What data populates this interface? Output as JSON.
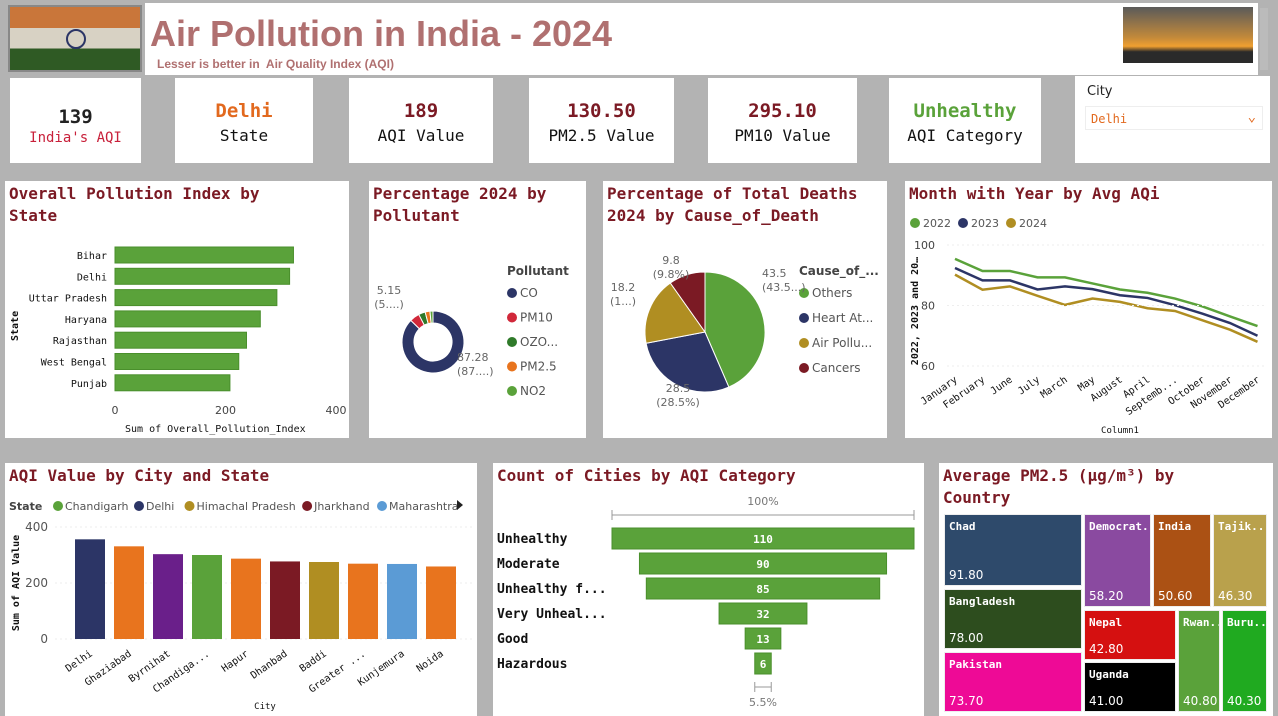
{
  "header": {
    "title": "Air Pollution in India - 2024",
    "subtitle": "Lesser is better in  Air Quality Index (AQI)"
  },
  "kpis": [
    {
      "value": "139",
      "label": "India's AQI",
      "value_color": "#222222",
      "label_color": "#c8203a"
    },
    {
      "value": "Delhi",
      "label": "State",
      "value_color": "#e2691e",
      "label_color": "#111111"
    },
    {
      "value": "189",
      "label": "AQI Value",
      "value_color": "#7b1a24",
      "label_color": "#111111"
    },
    {
      "value": "130.50",
      "label": "PM2.5 Value",
      "value_color": "#7b1a24",
      "label_color": "#111111"
    },
    {
      "value": "295.10",
      "label": "PM10 Value",
      "value_color": "#7b1a24",
      "label_color": "#111111"
    },
    {
      "value": "Unhealthy",
      "label": "AQI Category",
      "value_color": "#5aa23a",
      "label_color": "#111111"
    }
  ],
  "slicer": {
    "label": "City",
    "selected": "Delhi"
  },
  "chart_data": [
    {
      "id": "state_bar",
      "type": "bar",
      "orientation": "horizontal",
      "title": "Overall Pollution Index by State",
      "xlabel": "Sum of Overall_Pollution_Index",
      "ylabel": "State",
      "categories": [
        "Bihar",
        "Delhi",
        "Uttar Pradesh",
        "Haryana",
        "Rajasthan",
        "West Bengal",
        "Punjab"
      ],
      "values": [
        323,
        316,
        293,
        263,
        238,
        224,
        208
      ],
      "xlim": [
        0,
        400
      ],
      "ticks": [
        "0",
        "200",
        "400"
      ],
      "color": "#5aa23a"
    },
    {
      "id": "pollutant_donut",
      "type": "pie",
      "variant": "donut",
      "title": "Percentage 2024 by Pollutant",
      "legend_title": "Pollutant",
      "categories": [
        "CO",
        "PM10",
        "OZO...",
        "PM2.5",
        "NO2"
      ],
      "values": [
        87.28,
        5.15,
        3.5,
        2.5,
        1.57
      ],
      "colors": [
        "#2c3566",
        "#d1283a",
        "#2f7a2a",
        "#e8741e",
        "#5aa23a"
      ],
      "labels": [
        {
          "value": "87.28",
          "pct": "(87....)"
        },
        {
          "value": "5.15",
          "pct": "(5....)"
        }
      ]
    },
    {
      "id": "deaths_pie",
      "type": "pie",
      "title": "Percentage of Total Deaths 2024 by Cause_of_Death",
      "legend_title": "Cause_of_...",
      "categories": [
        "Others",
        "Heart At...",
        "Air Pollu...",
        "Cancers"
      ],
      "values": [
        43.5,
        28.5,
        18.2,
        9.8
      ],
      "colors": [
        "#5aa23a",
        "#2c3566",
        "#b08e22",
        "#7b1a24"
      ],
      "labels": [
        {
          "value": "43.5",
          "pct": "(43.5...)"
        },
        {
          "value": "28.5",
          "pct": "(28.5%)"
        },
        {
          "value": "18.2",
          "pct": "(1...)"
        },
        {
          "value": "9.8",
          "pct": "(9.8%)"
        }
      ]
    },
    {
      "id": "month_line",
      "type": "line",
      "title": "Month with Year by Avg AQi",
      "xlabel": "Column1",
      "ylabel": "2022, 2023 and 20…",
      "ylim": [
        60,
        100
      ],
      "ticks": [
        "100",
        "80",
        "60"
      ],
      "categories": [
        "January",
        "February",
        "June",
        "July",
        "March",
        "May",
        "August",
        "April",
        "Septemb...",
        "October",
        "November",
        "December"
      ],
      "series": [
        {
          "name": "2022",
          "color": "#5aa23a",
          "values": [
            95.4,
            91.4,
            91.4,
            89.3,
            89.3,
            87.3,
            85.3,
            84.2,
            82.3,
            79.7,
            76.4,
            73.2
          ]
        },
        {
          "name": "2023",
          "color": "#2c3566",
          "values": [
            92.4,
            88.3,
            88.3,
            85.3,
            86.3,
            85.4,
            83.4,
            82.5,
            80.1,
            77.3,
            74.2,
            70
          ]
        },
        {
          "name": "2024",
          "color": "#b08e22",
          "values": [
            90.2,
            85.2,
            86.3,
            83.2,
            80.2,
            82.3,
            81.2,
            79.1,
            78.2,
            75.1,
            72,
            68
          ]
        }
      ]
    },
    {
      "id": "city_bar",
      "type": "bar",
      "title": "AQI Value by City and State",
      "xlabel": "City",
      "ylabel": "Sum of AQI Value",
      "legend_title": "State",
      "legend": [
        {
          "name": "Chandigarh",
          "color": "#5aa23a"
        },
        {
          "name": "Delhi",
          "color": "#2c3566"
        },
        {
          "name": "Himachal Pradesh",
          "color": "#b08e22"
        },
        {
          "name": "Jharkhand",
          "color": "#7b1a24"
        },
        {
          "name": "Maharashtra",
          "color": "#5b9bd5"
        }
      ],
      "ylim": [
        0,
        400
      ],
      "ticks": [
        "400",
        "200",
        "0"
      ],
      "categories": [
        "Delhi",
        "Ghaziabad",
        "Byrnihat",
        "Chandiga...",
        "Hapur",
        "Dhanbad",
        "Baddi",
        "Greater ...",
        "Kunjemura",
        "Noida"
      ],
      "values": [
        356,
        331,
        303,
        300,
        287,
        277,
        275,
        269,
        268,
        259
      ],
      "colors": [
        "#2c3566",
        "#e8741e",
        "#6a1f8a",
        "#5aa23a",
        "#e8741e",
        "#7b1a24",
        "#b08e22",
        "#e8741e",
        "#5b9bd5",
        "#e8741e"
      ]
    },
    {
      "id": "funnel",
      "type": "bar",
      "variant": "funnel",
      "title": "Count of Cities by AQI Category",
      "top_label": "100%",
      "bottom_label": "5.5%",
      "categories": [
        "Unhealthy",
        "Moderate",
        "Unhealthy f...",
        "Very Unheal...",
        "Good",
        "Hazardous"
      ],
      "values": [
        110,
        90,
        85,
        32,
        13,
        6
      ],
      "color": "#5aa23a"
    },
    {
      "id": "treemap",
      "type": "treemap",
      "title": "Average PM2.5 (µg/m³) by Country",
      "items": [
        {
          "name": "Chad",
          "value": "91.80",
          "color": "#2e4a6b"
        },
        {
          "name": "Bangladesh",
          "value": "78.00",
          "color": "#2d4d1e"
        },
        {
          "name": "Pakistan",
          "value": "73.70",
          "color": "#ee0a96"
        },
        {
          "name": "Democrat...",
          "value": "58.20",
          "color": "#8a4aa0"
        },
        {
          "name": "India",
          "value": "50.60",
          "color": "#ab5114"
        },
        {
          "name": "Tajik...",
          "value": "46.30",
          "color": "#b9a14c"
        },
        {
          "name": "Nepal",
          "value": "42.80",
          "color": "#d51010"
        },
        {
          "name": "Uganda",
          "value": "41.00",
          "color": "#000000"
        },
        {
          "name": "Rwan...",
          "value": "40.80",
          "color": "#5aa23a"
        },
        {
          "name": "Buru...",
          "value": "40.30",
          "color": "#20aa20"
        }
      ]
    }
  ]
}
